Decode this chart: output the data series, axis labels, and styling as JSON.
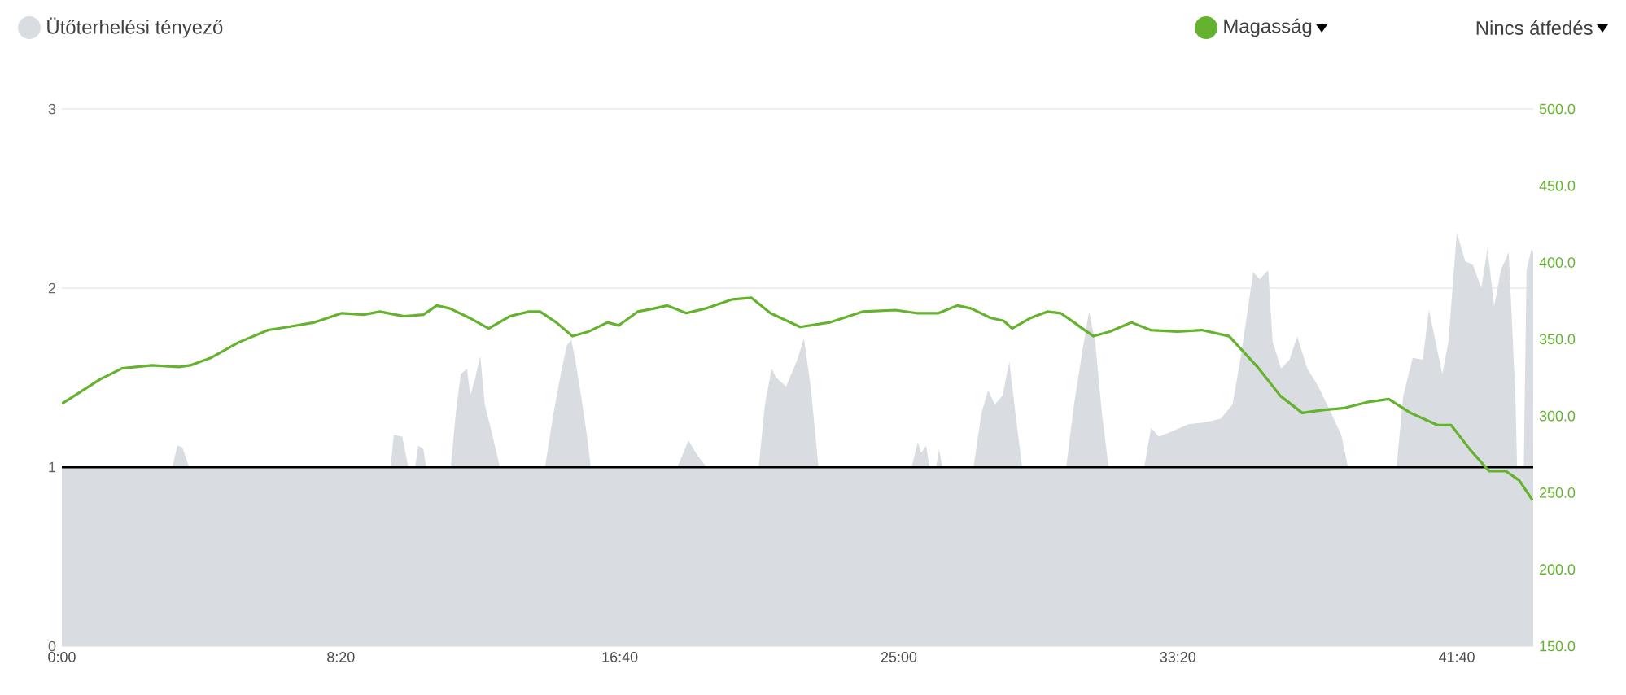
{
  "chart_data": {
    "type": "area",
    "annotations": [
      "Nincs átfedés"
    ],
    "legend": "top",
    "grid": "y",
    "xlim": [
      0,
      2637
    ],
    "xticks": [
      {
        "value": 0,
        "label": "0:00"
      },
      {
        "value": 500,
        "label": "8:20"
      },
      {
        "value": 1000,
        "label": "16:40"
      },
      {
        "value": 1500,
        "label": "25:00"
      },
      {
        "value": 2000,
        "label": "33:20"
      },
      {
        "value": 2500,
        "label": "41:40"
      }
    ],
    "ylim": [
      0,
      3
    ],
    "yticks": [
      0,
      1,
      2,
      3
    ],
    "y2lim": [
      150,
      500
    ],
    "y2ticks": [
      {
        "value": 150,
        "label": "150.0"
      },
      {
        "value": 200,
        "label": "200.0"
      },
      {
        "value": 250,
        "label": "250.0"
      },
      {
        "value": 300,
        "label": "300.0"
      },
      {
        "value": 350,
        "label": "350.0"
      },
      {
        "value": 400,
        "label": "400.0"
      },
      {
        "value": 450,
        "label": "450.0"
      },
      {
        "value": 500,
        "label": "500.0"
      }
    ],
    "ref_lines": [
      {
        "axis": "y",
        "value": 1,
        "color": "#000000"
      }
    ],
    "series": [
      {
        "name": "Ütőterhelési tényező",
        "color": "#d9dce1",
        "x": [
          0,
          198,
          207,
          216,
          228,
          589,
          595,
          610,
          621,
          633,
          639,
          648,
          653,
          697,
          706,
          715,
          726,
          732,
          741,
          750,
          758,
          770,
          785,
          866,
          881,
          896,
          905,
          913,
          919,
          928,
          940,
          948,
          1103,
          1114,
          1123,
          1138,
          1155,
          1249,
          1260,
          1272,
          1280,
          1298,
          1318,
          1330,
          1342,
          1356,
          1523,
          1534,
          1540,
          1549,
          1555,
          1567,
          1572,
          1578,
          1634,
          1648,
          1660,
          1672,
          1686,
          1698,
          1709,
          1721,
          1800,
          1814,
          1829,
          1841,
          1852,
          1864,
          1876,
          1940,
          1952,
          1966,
          1990,
          2019,
          2048,
          2077,
          2098,
          2112,
          2124,
          2135,
          2147,
          2162,
          2170,
          2185,
          2200,
          2214,
          2232,
          2252,
          2275,
          2293,
          2305,
          2392,
          2404,
          2421,
          2439,
          2450,
          2462,
          2474,
          2485,
          2500,
          2515,
          2529,
          2544,
          2555,
          2567,
          2579,
          2593,
          2605,
          2608,
          2620,
          2625,
          2634,
          2637
        ],
        "values": [
          1,
          1,
          1.12,
          1.11,
          1,
          1,
          1.18,
          1.17,
          1,
          1,
          1.12,
          1.1,
          1,
          1,
          1.3,
          1.52,
          1.55,
          1.4,
          1.5,
          1.62,
          1.35,
          1.2,
          1,
          1,
          1.3,
          1.55,
          1.68,
          1.71,
          1.62,
          1.45,
          1.2,
          1,
          1,
          1.08,
          1.15,
          1.07,
          1,
          1,
          1.35,
          1.55,
          1.5,
          1.45,
          1.6,
          1.72,
          1.45,
          1,
          1,
          1.14,
          1.08,
          1.12,
          1,
          1,
          1.1,
          1,
          1,
          1.3,
          1.43,
          1.35,
          1.4,
          1.59,
          1.3,
          1,
          1,
          1.35,
          1.65,
          1.87,
          1.7,
          1.3,
          1,
          1,
          1.22,
          1.17,
          1.2,
          1.24,
          1.25,
          1.27,
          1.35,
          1.6,
          1.85,
          2.09,
          2.05,
          2.1,
          1.7,
          1.55,
          1.6,
          1.73,
          1.55,
          1.45,
          1.3,
          1.18,
          1,
          1,
          1.4,
          1.61,
          1.6,
          1.88,
          1.7,
          1.52,
          1.7,
          2.31,
          2.15,
          2.13,
          2.0,
          2.22,
          1.9,
          2.1,
          2.2,
          1.4,
          1,
          1,
          2.1,
          2.22,
          2.2
        ]
      },
      {
        "name": "Magasság",
        "type": "line",
        "axis": "y2",
        "color": "#64b22d",
        "x": [
          0,
          69,
          108,
          161,
          210,
          230,
          268,
          317,
          370,
          405,
          453,
          502,
          541,
          570,
          613,
          648,
          672,
          696,
          730,
          765,
          803,
          837,
          857,
          886,
          915,
          944,
          978,
          998,
          1032,
          1061,
          1085,
          1119,
          1153,
          1202,
          1236,
          1270,
          1323,
          1377,
          1435,
          1494,
          1532,
          1571,
          1605,
          1630,
          1664,
          1688,
          1703,
          1737,
          1766,
          1790,
          1814,
          1829,
          1849,
          1878,
          1917,
          1951,
          1999,
          2043,
          2092,
          2145,
          2184,
          2223,
          2262,
          2296,
          2339,
          2378,
          2417,
          2466,
          2490,
          2524,
          2558,
          2588,
          2612,
          2636
        ],
        "values": [
          308,
          324,
          331,
          333,
          332,
          333,
          338,
          348,
          356,
          358,
          361,
          367,
          366,
          368,
          365,
          366,
          372,
          370,
          364,
          357,
          365,
          368,
          368,
          361,
          352,
          355,
          361,
          359,
          368,
          370,
          372,
          367,
          370,
          376,
          377,
          367,
          358,
          361,
          368,
          369,
          367,
          367,
          372,
          370,
          364,
          362,
          357,
          364,
          368,
          367,
          361,
          357,
          352,
          355,
          361,
          356,
          355,
          356,
          352,
          331,
          313,
          302,
          304,
          305,
          309,
          311,
          302,
          294,
          294,
          278,
          264,
          264,
          258,
          245
        ]
      }
    ]
  }
}
